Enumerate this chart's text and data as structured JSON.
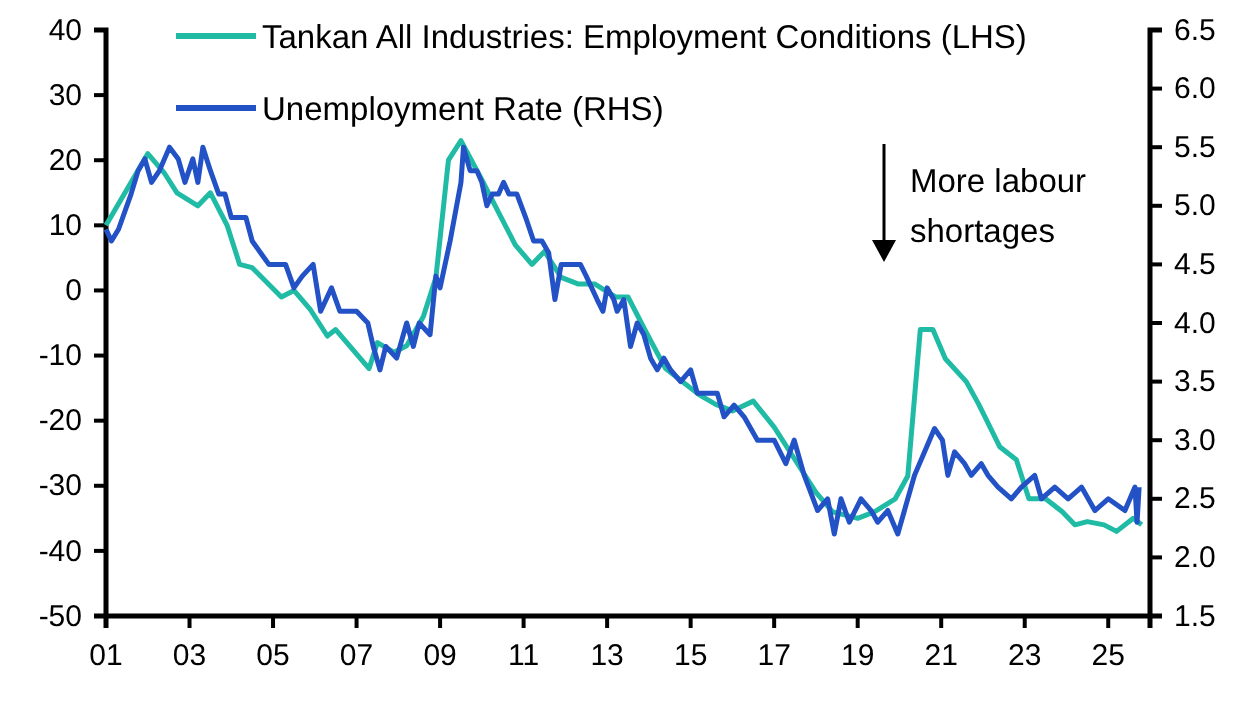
{
  "chart_data": {
    "type": "line",
    "xlim": [
      2001,
      2026
    ],
    "xticks": [
      {
        "value": 2001,
        "label": "01"
      },
      {
        "value": 2003,
        "label": "03"
      },
      {
        "value": 2005,
        "label": "05"
      },
      {
        "value": 2007,
        "label": "07"
      },
      {
        "value": 2009,
        "label": "09"
      },
      {
        "value": 2011,
        "label": "11"
      },
      {
        "value": 2013,
        "label": "13"
      },
      {
        "value": 2015,
        "label": "15"
      },
      {
        "value": 2017,
        "label": "17"
      },
      {
        "value": 2019,
        "label": "19"
      },
      {
        "value": 2021,
        "label": "21"
      },
      {
        "value": 2023,
        "label": "23"
      },
      {
        "value": 2025,
        "label": "25"
      }
    ],
    "ylim": [
      -50,
      40
    ],
    "yticks": [
      -50,
      -40,
      -30,
      -20,
      -10,
      0,
      10,
      20,
      30,
      40
    ],
    "y2lim": [
      1.5,
      6.5
    ],
    "y2ticks": [
      {
        "value": 1.5,
        "label": "1.5"
      },
      {
        "value": 2,
        "label": "2.0"
      },
      {
        "value": 2.5,
        "label": "2.5"
      },
      {
        "value": 3,
        "label": "3.0"
      },
      {
        "value": 3.5,
        "label": "3.5"
      },
      {
        "value": 4,
        "label": "4.0"
      },
      {
        "value": 4.5,
        "label": "4.5"
      },
      {
        "value": 5,
        "label": "5.0"
      },
      {
        "value": 5.5,
        "label": "5.5"
      },
      {
        "value": 6,
        "label": "6.0"
      },
      {
        "value": 6.5,
        "label": "6.5"
      }
    ],
    "grid": false,
    "legend": "top left",
    "marker": "none",
    "line_style": "solid",
    "annotations": [
      "More labour shortages"
    ],
    "series": [
      {
        "name": "Tankan All Industries: Employment Conditions (LHS)",
        "color": "#20bba5",
        "x": [
          2001.0,
          2002.0,
          2002.4,
          2002.7,
          2003.2,
          2003.5,
          2003.9,
          2004.2,
          2004.5,
          2005.2,
          2005.5,
          2005.9,
          2006.3,
          2006.5,
          2007.3,
          2007.5,
          2007.9,
          2008.2,
          2008.6,
          2008.9,
          2009.2,
          2009.5,
          2010.0,
          2010.4,
          2010.8,
          2011.2,
          2011.5,
          2011.9,
          2012.3,
          2012.7,
          2013.2,
          2013.5,
          2013.9,
          2014.4,
          2015.2,
          2015.6,
          2016.0,
          2016.5,
          2017.0,
          2017.5,
          2018.0,
          2018.4,
          2019.0,
          2019.4,
          2019.9,
          2020.2,
          2020.5,
          2020.8,
          2021.1,
          2021.6,
          2021.9,
          2022.4,
          2022.8,
          2023.1,
          2023.5,
          2023.9,
          2024.2,
          2024.5,
          2024.9,
          2025.2,
          2025.6,
          2025.8
        ],
        "values": [
          10,
          21,
          18,
          15,
          13,
          15,
          10,
          4,
          3.5,
          -1,
          0,
          -3,
          -7,
          -6,
          -12,
          -8,
          -9.5,
          -8.5,
          -4,
          2,
          20,
          23,
          17,
          12,
          7,
          4,
          6,
          2,
          1,
          1,
          -1,
          -1,
          -6,
          -12,
          -16,
          -17.5,
          -18.5,
          -17,
          -21,
          -26,
          -31,
          -34,
          -35,
          -34,
          -32,
          -28.5,
          -6,
          -6,
          -10.5,
          -14,
          -17.5,
          -24,
          -26,
          -32,
          -32,
          -34,
          -36,
          -35.5,
          -36,
          -37,
          -35,
          -36
        ]
      },
      {
        "name": "Unemployment Rate (RHS)",
        "color": "#2352c6",
        "axis": "y2",
        "x": [
          2001.0,
          2001.13,
          2001.3,
          2001.6,
          2001.77,
          2001.93,
          2002.09,
          2002.28,
          2002.52,
          2002.73,
          2002.89,
          2003.08,
          2003.2,
          2003.32,
          2003.5,
          2003.7,
          2003.85,
          2004.0,
          2004.2,
          2004.35,
          2004.5,
          2004.7,
          2004.9,
          2005.1,
          2005.3,
          2005.5,
          2005.7,
          2005.96,
          2006.14,
          2006.4,
          2006.6,
          2007.0,
          2007.27,
          2007.4,
          2007.56,
          2007.7,
          2007.96,
          2008.2,
          2008.36,
          2008.5,
          2008.76,
          2008.9,
          2009.0,
          2009.24,
          2009.5,
          2009.56,
          2009.72,
          2009.88,
          2010.0,
          2010.12,
          2010.25,
          2010.4,
          2010.52,
          2010.65,
          2010.84,
          2011.05,
          2011.24,
          2011.44,
          2011.6,
          2011.75,
          2011.9,
          2012.2,
          2012.36,
          2012.5,
          2012.76,
          2012.9,
          2013.0,
          2013.16,
          2013.24,
          2013.4,
          2013.56,
          2013.72,
          2013.88,
          2014.04,
          2014.2,
          2014.36,
          2014.52,
          2014.76,
          2015.0,
          2015.16,
          2015.4,
          2015.64,
          2015.8,
          2016.04,
          2016.28,
          2016.6,
          2017.0,
          2017.28,
          2017.48,
          2017.72,
          2018.04,
          2018.28,
          2018.44,
          2018.6,
          2018.8,
          2019.08,
          2019.32,
          2019.48,
          2019.72,
          2019.96,
          2020.12,
          2020.36,
          2020.6,
          2020.84,
          2021.03,
          2021.16,
          2021.32,
          2021.56,
          2021.72,
          2021.96,
          2022.12,
          2022.36,
          2022.68,
          2022.92,
          2023.24,
          2023.4,
          2023.72,
          2024.04,
          2024.36,
          2024.68,
          2025.0,
          2025.4,
          2025.64,
          2025.69,
          2025.74
        ],
        "values": [
          4.8,
          4.7,
          4.8,
          5.1,
          5.3,
          5.4,
          5.2,
          5.3,
          5.5,
          5.4,
          5.2,
          5.4,
          5.2,
          5.5,
          5.3,
          5.1,
          5.1,
          4.9,
          4.9,
          4.9,
          4.7,
          4.6,
          4.5,
          4.5,
          4.5,
          4.3,
          4.4,
          4.5,
          4.1,
          4.3,
          4.1,
          4.1,
          4.0,
          3.8,
          3.6,
          3.8,
          3.7,
          4.0,
          3.8,
          4.0,
          3.9,
          4.4,
          4.3,
          4.7,
          5.2,
          5.5,
          5.3,
          5.3,
          5.2,
          5.0,
          5.1,
          5.1,
          5.2,
          5.1,
          5.1,
          4.9,
          4.7,
          4.7,
          4.6,
          4.2,
          4.5,
          4.5,
          4.5,
          4.4,
          4.2,
          4.1,
          4.3,
          4.2,
          4.1,
          4.2,
          3.8,
          4.0,
          3.9,
          3.7,
          3.6,
          3.7,
          3.6,
          3.5,
          3.6,
          3.4,
          3.4,
          3.4,
          3.2,
          3.3,
          3.2,
          3.0,
          3.0,
          2.8,
          3.0,
          2.7,
          2.4,
          2.5,
          2.2,
          2.5,
          2.3,
          2.5,
          2.4,
          2.3,
          2.4,
          2.2,
          2.4,
          2.7,
          2.9,
          3.1,
          3.0,
          2.7,
          2.9,
          2.8,
          2.7,
          2.8,
          2.7,
          2.6,
          2.5,
          2.6,
          2.7,
          2.5,
          2.6,
          2.5,
          2.6,
          2.4,
          2.5,
          2.4,
          2.6,
          2.3,
          2.6
        ]
      }
    ]
  }
}
